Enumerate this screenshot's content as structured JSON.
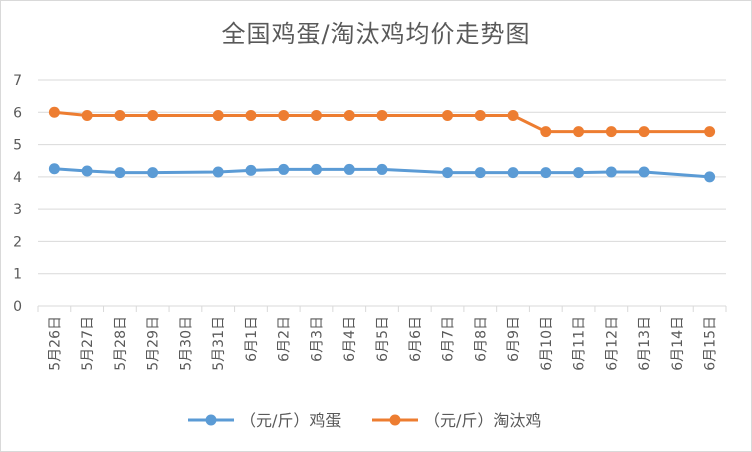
{
  "chart_data": {
    "type": "line",
    "title": "全国鸡蛋/淘汰鸡均价走势图",
    "xlabel": "",
    "ylabel": "",
    "ylim": [
      0,
      7
    ],
    "yticks": [
      0,
      1,
      2,
      3,
      4,
      5,
      6,
      7
    ],
    "grid": true,
    "legend_position": "bottom",
    "categories": [
      "5月26日",
      "5月27日",
      "5月28日",
      "5月29日",
      "5月30日",
      "5月31日",
      "6月1日",
      "6月2日",
      "6月3日",
      "6月4日",
      "6月5日",
      "6月6日",
      "6月7日",
      "6月8日",
      "6月9日",
      "6月10日",
      "6月11日",
      "6月12日",
      "6月13日",
      "6月14日",
      "6月15日"
    ],
    "series": [
      {
        "name": "（元/斤）鸡蛋",
        "color": "#5b9bd5",
        "values": [
          4.25,
          4.18,
          4.13,
          4.13,
          null,
          4.15,
          4.2,
          4.23,
          4.23,
          4.23,
          4.23,
          null,
          4.13,
          4.13,
          4.13,
          4.13,
          4.13,
          4.15,
          4.15,
          null,
          4.0
        ]
      },
      {
        "name": "（元/斤）淘汰鸡",
        "color": "#ed7d31",
        "values": [
          6.0,
          5.9,
          5.9,
          5.9,
          null,
          5.9,
          5.9,
          5.9,
          5.9,
          5.9,
          5.9,
          null,
          5.9,
          5.9,
          5.9,
          5.4,
          5.4,
          5.4,
          5.4,
          null,
          5.4
        ]
      }
    ]
  }
}
